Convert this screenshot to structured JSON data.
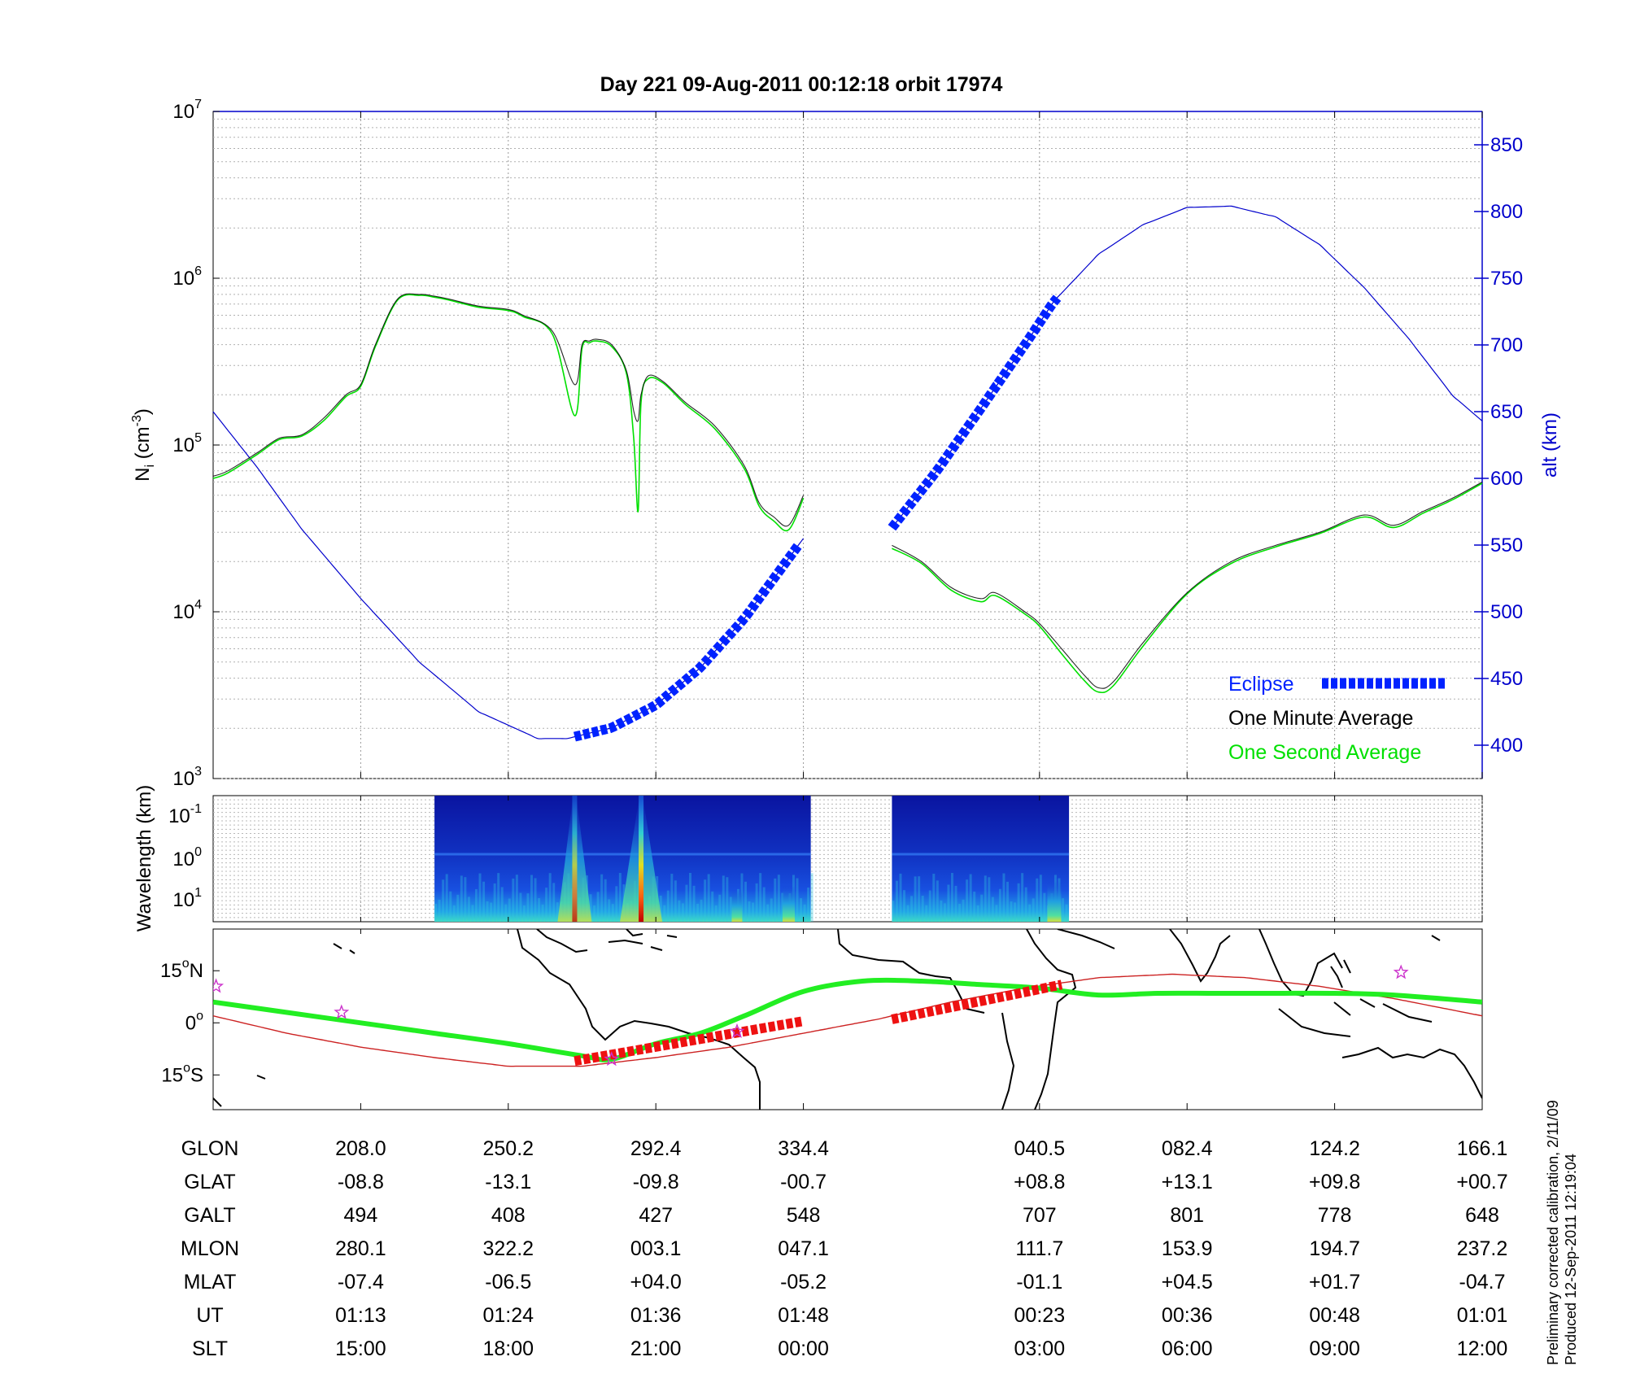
{
  "title": "Day 221  09-Aug-2011 00:12:18   orbit 17974",
  "colors": {
    "alt": "#0000cc",
    "eclipse": "#0022ff",
    "minute": "#000000",
    "second": "#00e000",
    "track_green": "#22ee22",
    "track_red": "#ee1111",
    "dip_eq": "#cc2222",
    "star": "#cc33cc",
    "spec_bg": "#0a1aa8"
  },
  "chart_data": [
    {
      "type": "line",
      "name": "ion-density-altitude",
      "title": "Day 221  09-Aug-2011 00:12:18   orbit 17974",
      "ylabel": "N",
      "ylabel_sub": "i",
      "ylabel_unit": " (cm",
      "ylabel_exp": "-3",
      "ylabel_close": ")",
      "y_scale": "log",
      "ylim": [
        1000,
        10000000
      ],
      "y_ticks": [
        {
          "base": "10",
          "exp": "3",
          "value": 1000
        },
        {
          "base": "10",
          "exp": "4",
          "value": 10000
        },
        {
          "base": "10",
          "exp": "5",
          "value": 100000
        },
        {
          "base": "10",
          "exp": "6",
          "value": 1000000
        },
        {
          "base": "10",
          "exp": "7",
          "value": 10000000
        }
      ],
      "y2label": "alt (km)",
      "y2lim": [
        375,
        875
      ],
      "y2_ticks": [
        "400",
        "450",
        "500",
        "550",
        "600",
        "650",
        "700",
        "750",
        "800",
        "850"
      ],
      "x_domain": [
        0,
        8.6
      ],
      "x_ticks": [
        1,
        2,
        3,
        4,
        5.6,
        6.6,
        7.6,
        8.6
      ],
      "legend_position": "bottom-right",
      "legend": {
        "eclipse": "Eclipse",
        "minute": "One Minute Average",
        "second": "One Second Average"
      },
      "segments": [
        {
          "name": "first-half",
          "x": [
            0,
            0.1,
            0.3,
            0.45,
            0.6,
            0.75,
            0.9,
            1.0,
            1.1,
            1.25,
            1.4,
            1.5,
            1.6,
            1.8,
            2.0,
            2.1,
            2.3,
            2.45,
            2.5,
            2.55,
            2.6,
            2.7,
            2.8,
            2.85,
            2.88,
            2.9,
            2.95,
            3.05,
            3.2,
            3.4,
            3.6,
            3.7,
            3.8,
            3.9,
            4.0
          ],
          "minute": [
            65000,
            70000,
            90000,
            110000,
            115000,
            145000,
            200000,
            230000,
            400000,
            750000,
            800000,
            780000,
            750000,
            680000,
            650000,
            600000,
            480000,
            230000,
            400000,
            420000,
            430000,
            400000,
            280000,
            160000,
            140000,
            200000,
            260000,
            240000,
            180000,
            130000,
            75000,
            45000,
            37000,
            33000,
            50000
          ],
          "second": [
            63000,
            68000,
            88000,
            108000,
            113000,
            140000,
            195000,
            225000,
            390000,
            740000,
            790000,
            770000,
            740000,
            670000,
            640000,
            590000,
            460000,
            150000,
            380000,
            410000,
            420000,
            390000,
            270000,
            110000,
            40000,
            180000,
            250000,
            235000,
            175000,
            125000,
            72000,
            43000,
            35000,
            31000,
            48000
          ],
          "alt_x": [
            0,
            0.3,
            0.6,
            1.0,
            1.4,
            1.8,
            2.2,
            2.4,
            2.7,
            3.0,
            3.3,
            3.6,
            3.9,
            4.0
          ],
          "alt": [
            650,
            608,
            562,
            510,
            462,
            425,
            405,
            405,
            413,
            430,
            458,
            495,
            540,
            555
          ]
        },
        {
          "name": "second-half",
          "x": [
            4.6,
            4.8,
            5.0,
            5.2,
            5.3,
            5.5,
            5.6,
            5.75,
            5.9,
            6.0,
            6.1,
            6.3,
            6.6,
            6.9,
            7.2,
            7.5,
            7.8,
            8.0,
            8.2,
            8.4,
            8.6
          ],
          "minute": [
            25000,
            20000,
            14000,
            12000,
            13000,
            10000,
            8500,
            6000,
            4200,
            3500,
            3800,
            6500,
            13000,
            20000,
            25000,
            30000,
            38000,
            33000,
            40000,
            48000,
            60000
          ],
          "second": [
            24000,
            19500,
            13500,
            11500,
            12500,
            9700,
            8200,
            5600,
            3900,
            3300,
            3600,
            6200,
            12800,
            19500,
            24500,
            29500,
            37000,
            32000,
            39000,
            47000,
            59000
          ],
          "alt_x": [
            4.6,
            4.9,
            5.2,
            5.5,
            5.7,
            6.0,
            6.3,
            6.6,
            6.9,
            7.2,
            7.5,
            7.8,
            8.1,
            8.4,
            8.6
          ],
          "alt": [
            563,
            605,
            652,
            700,
            733,
            768,
            790,
            803,
            804,
            796,
            775,
            743,
            705,
            662,
            643
          ]
        }
      ],
      "eclipse_ranges": [
        [
          2.45,
          4.0
        ],
        [
          4.6,
          5.75
        ]
      ]
    },
    {
      "type": "heatmap",
      "name": "wavelength-spectrogram",
      "ylabel": "Wavelength (km)",
      "y_ticks": [
        {
          "base": "10",
          "exp": "-1"
        },
        {
          "base": "10",
          "exp": "0"
        },
        {
          "base": "10",
          "exp": "1"
        }
      ],
      "x_ranges": [
        [
          1.5,
          4.05
        ],
        [
          4.6,
          5.8
        ]
      ],
      "peaks": [
        {
          "x": 2.45,
          "intensity": 0.75
        },
        {
          "x": 2.9,
          "intensity": 1.0
        },
        {
          "x": 3.55,
          "intensity": 0.35
        },
        {
          "x": 3.9,
          "intensity": 0.45
        },
        {
          "x": 5.7,
          "intensity": 0.55
        }
      ]
    },
    {
      "type": "line",
      "name": "ground-track-map",
      "y_ticks": [
        {
          "label": "15",
          "deg": "o",
          "hemi": "N",
          "lat": 15
        },
        {
          "label": "0",
          "deg": "o",
          "hemi": "",
          "lat": 0
        },
        {
          "label": "15",
          "deg": "o",
          "hemi": "S",
          "lat": -15
        }
      ],
      "ylim": [
        -25,
        27
      ],
      "track_green": {
        "x": [
          0,
          0.5,
          1.0,
          1.5,
          2.0,
          2.5,
          2.7,
          3.0,
          3.3,
          3.6,
          4.0,
          4.4,
          4.8,
          5.2,
          5.6,
          6.0,
          6.4,
          6.8,
          7.2,
          7.6,
          8.0,
          8.6
        ],
        "lat": [
          6,
          3,
          0,
          -3,
          -6,
          -9.5,
          -10.5,
          -6,
          -3,
          2,
          9,
          12,
          12,
          11,
          10,
          8,
          8.5,
          8.5,
          8.5,
          8.5,
          8,
          6
        ]
      },
      "track_red": {
        "ranges": [
          [
            2.45,
            4.0
          ],
          [
            4.6,
            5.75
          ]
        ]
      },
      "dip_equator": {
        "x": [
          0,
          0.5,
          1.0,
          1.5,
          2.0,
          2.5,
          3.0,
          3.5,
          4.0,
          4.5,
          5.0,
          5.5,
          6.0,
          6.5,
          7.0,
          7.5,
          8.0,
          8.6
        ],
        "lat": [
          2,
          -3,
          -7,
          -10,
          -12.5,
          -12.5,
          -10,
          -7,
          -3,
          1,
          6,
          10,
          13,
          14,
          13,
          10.5,
          7,
          2
        ]
      },
      "stars": [
        {
          "x": 0.02,
          "lat": 10.5
        },
        {
          "x": 0.87,
          "lat": 3
        },
        {
          "x": 2.7,
          "lat": -10.5
        },
        {
          "x": 3.55,
          "lat": -2.5
        },
        {
          "x": 8.05,
          "lat": 14.5
        }
      ]
    },
    {
      "type": "table",
      "name": "orbit-ephemeris",
      "columns_x": [
        1,
        2,
        3,
        4,
        5.6,
        6.6,
        7.6,
        8.6
      ],
      "rows": [
        {
          "label": "GLON",
          "values": [
            "208.0",
            "250.2",
            "292.4",
            "334.4",
            "040.5",
            "082.4",
            "124.2",
            "166.1"
          ]
        },
        {
          "label": "GLAT",
          "values": [
            "-08.8",
            "-13.1",
            "-09.8",
            "-00.7",
            "+08.8",
            "+13.1",
            "+09.8",
            "+00.7"
          ]
        },
        {
          "label": "GALT",
          "values": [
            "494",
            "408",
            "427",
            "548",
            "707",
            "801",
            "778",
            "648"
          ]
        },
        {
          "label": "MLON",
          "values": [
            "280.1",
            "322.2",
            "003.1",
            "047.1",
            "111.7",
            "153.9",
            "194.7",
            "237.2"
          ]
        },
        {
          "label": "MLAT",
          "values": [
            "-07.4",
            "-06.5",
            "+04.0",
            "-05.2",
            "-01.1",
            "+04.5",
            "+01.7",
            "-04.7"
          ]
        },
        {
          "label": "UT",
          "values": [
            "01:13",
            "01:24",
            "01:36",
            "01:48",
            "00:23",
            "00:36",
            "00:48",
            "01:01"
          ]
        },
        {
          "label": "SLT",
          "values": [
            "15:00",
            "18:00",
            "21:00",
            "00:00",
            "03:00",
            "06:00",
            "09:00",
            "12:00"
          ]
        }
      ]
    }
  ],
  "footer": {
    "line1": "Preliminary corrected calibration, 2/11/09",
    "line2": "Produced 12-Sep-2011 12:19:04"
  }
}
